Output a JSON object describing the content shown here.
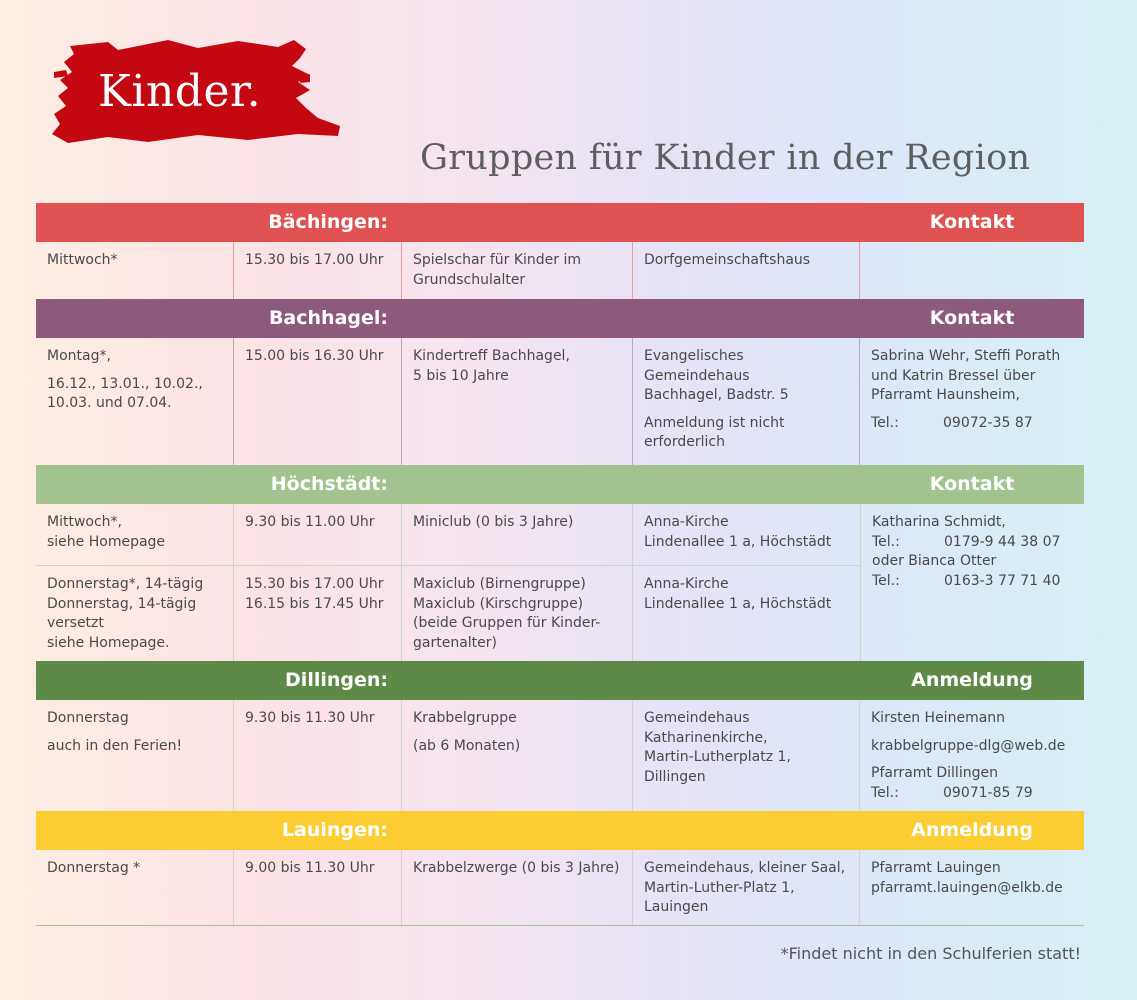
{
  "logo_word": "Kinder.",
  "title": "Gruppen für Kinder in der Region",
  "colors": {
    "baechingen": "#e05252",
    "bachhagel": "#8e5a7c",
    "hoechstaedt": "#a2c28e",
    "dillingen": "#5e8a47",
    "lauingen": "#fccd33",
    "brush": "#c40812"
  },
  "sections": {
    "baechingen": {
      "place": "Bächingen:",
      "contact_label": "Kontakt",
      "row": {
        "day": "Mittwoch*",
        "time": "15.30 bis 17.00 Uhr",
        "group_1": "Spielschar für Kinder im",
        "group_2": "Grundschulalter",
        "location": "Dorfgemeinschaftshaus"
      }
    },
    "bachhagel": {
      "place": "Bachhagel:",
      "contact_label": "Kontakt",
      "row": {
        "day": "Montag*,",
        "dates_1": "16.12., 13.01., 10.02.,",
        "dates_2": "10.03. und 07.04.",
        "time": "15.00 bis 16.30 Uhr",
        "group_1": "Kindertreff Bachhagel,",
        "group_2": "5 bis 10 Jahre",
        "location_1": "Evangelisches Gemeindehaus",
        "location_2": "Bachhagel, Badstr. 5",
        "note_1": "Anmeldung ist nicht",
        "note_2": "erforderlich",
        "contact_1": "Sabrina Wehr, Steffi Porath",
        "contact_2": "und Katrin Bressel über",
        "contact_3": "Pfarramt Haunsheim,",
        "tel_label": "Tel.:",
        "tel": "09072-35 87"
      }
    },
    "hoechstaedt": {
      "place": "Höchstädt:",
      "contact_label": "Kontakt",
      "row1": {
        "day_1": "Mittwoch*,",
        "day_2": "siehe Homepage",
        "time": "9.30 bis 11.00 Uhr",
        "group": "Miniclub (0 bis 3 Jahre)",
        "location_1": "Anna-Kirche",
        "location_2": "Lindenallee 1 a, Höchstädt"
      },
      "row2": {
        "day_1": "Donnerstag*, 14-tägig",
        "day_2": "Donnerstag, 14-tägig",
        "day_3": "versetzt",
        "day_4": "siehe Homepage.",
        "time_1": "15.30 bis 17.00 Uhr",
        "time_2": "16.15 bis 17.45 Uhr",
        "group_1": "Maxiclub (Birnengruppe)",
        "group_2": "Maxiclub (Kirschgruppe)",
        "group_3": "(beide Gruppen für Kinder-",
        "group_4": "gartenalter)",
        "location_1": "Anna-Kirche",
        "location_2": "Lindenallee 1 a, Höchstädt"
      },
      "contact": {
        "name_1": "Katharina Schmidt,",
        "tel_label_1": "Tel.:",
        "tel_1": "0179-9 44 38 07",
        "name_2": "oder Bianca Otter",
        "tel_label_2": "Tel.:",
        "tel_2": "0163-3 77 71 40"
      }
    },
    "dillingen": {
      "place": "Dillingen:",
      "contact_label": "Anmeldung",
      "row": {
        "day_1": "Donnerstag",
        "day_2": "auch in den Ferien!",
        "time": "9.30 bis 11.30 Uhr",
        "group_1": "Krabbelgruppe",
        "group_2": "(ab 6 Monaten)",
        "location_1": "Gemeindehaus",
        "location_2": "Katharinenkirche,",
        "location_3": "Martin-Lutherplatz 1,",
        "location_4": "Dillingen",
        "contact_1": "Kirsten Heinemann",
        "email": "krabbelgruppe-dlg@web.de",
        "contact_2": "Pfarramt Dillingen",
        "tel_label": "Tel.:",
        "tel": "09071-85 79"
      }
    },
    "lauingen": {
      "place": "Lauingen:",
      "contact_label": "Anmeldung",
      "row": {
        "day": "Donnerstag *",
        "time": "9.00 bis 11.30 Uhr",
        "group": "Krabbelzwerge (0 bis 3 Jahre)",
        "location_1": "Gemeindehaus, kleiner Saal,",
        "location_2": "Martin-Luther-Platz 1,",
        "location_3": "Lauingen",
        "contact_1": "Pfarramt Lauingen",
        "email": "pfarramt.lauingen@elkb.de"
      }
    }
  },
  "footnote": "*Findet nicht in den Schulferien statt!"
}
